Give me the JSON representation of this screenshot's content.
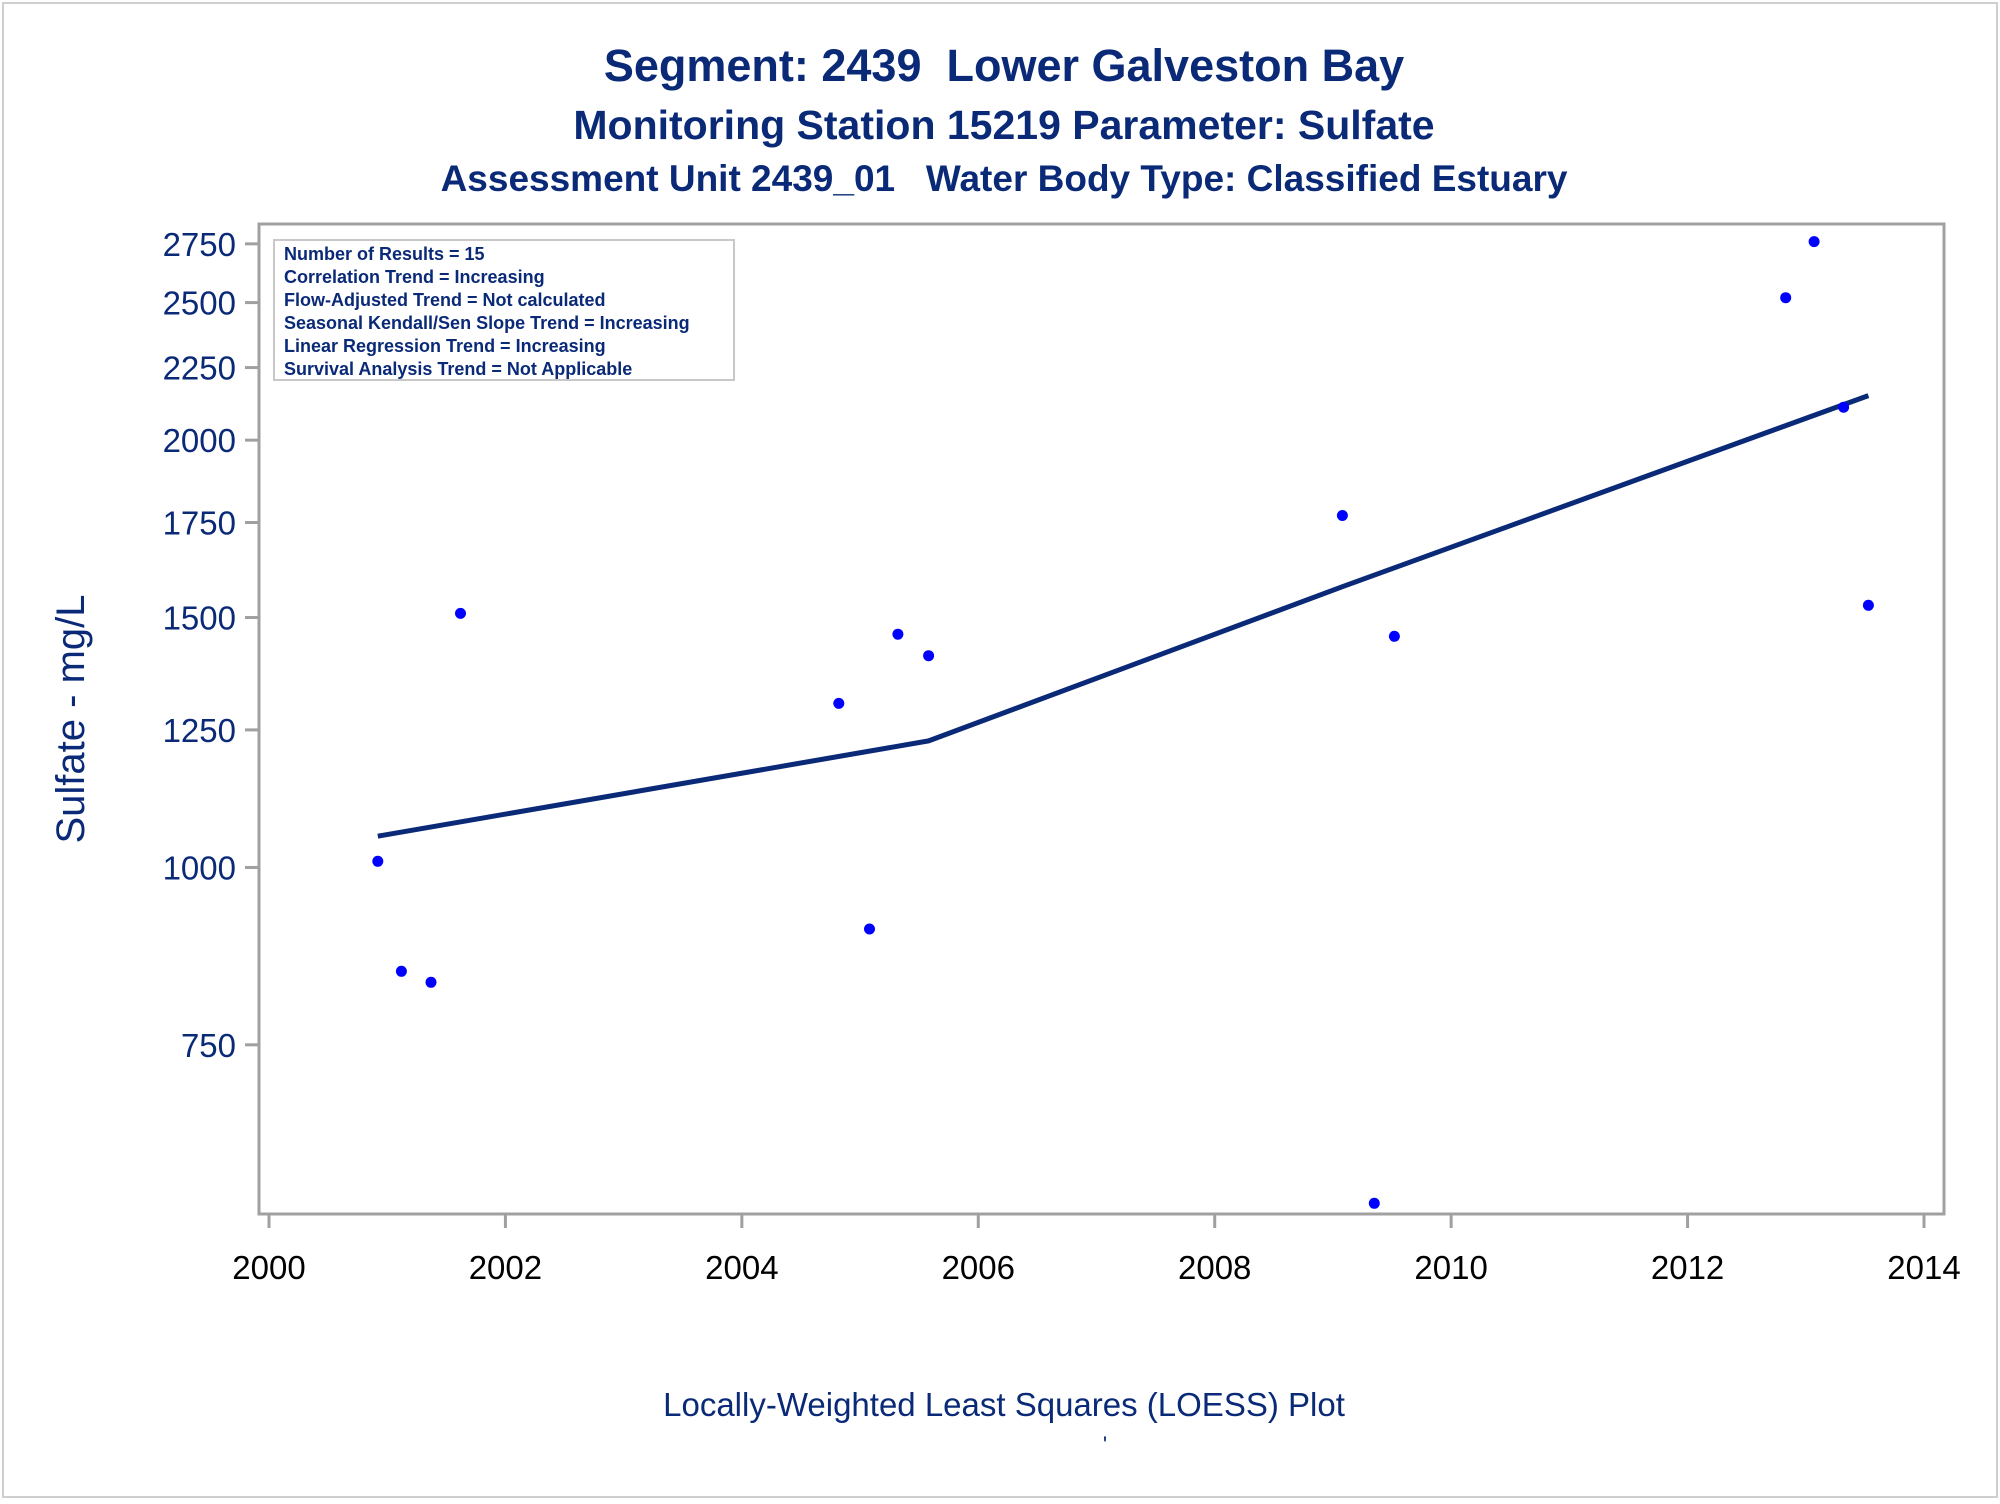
{
  "header": {
    "title": "Segment: 2439  Lower Galveston Bay",
    "subtitle": "Monitoring Station 15219 Parameter: Sulfate",
    "subtitle2": "Assessment Unit 2439_01   Water Body Type: Classified Estuary"
  },
  "inset": {
    "lines": [
      "Number of Results = 15",
      "Correlation Trend = Increasing",
      "Flow-Adjusted Trend = Not calculated",
      "Seasonal Kendall/Sen Slope Trend = Increasing",
      "Linear Regression Trend = Increasing",
      "Survival Analysis Trend = Not Applicable"
    ]
  },
  "footer": {
    "note": "Locally-Weighted Least Squares (LOESS) Plot",
    "mark": "'"
  },
  "colors": {
    "text": "#0a2a78",
    "points": "#0000ff",
    "line": "#0a2a78",
    "axis": "#a0a0a0"
  },
  "chart_data": {
    "type": "scatter",
    "title": "Segment: 2439  Lower Galveston Bay",
    "xlabel": "",
    "ylabel": "Sulfate - mg/L",
    "y_scale": "log",
    "xlim": [
      2000,
      2014
    ],
    "ylim": [
      570,
      2840
    ],
    "x_ticks": [
      2000,
      2002,
      2004,
      2006,
      2008,
      2010,
      2012,
      2014
    ],
    "y_ticks": [
      750,
      1000,
      1250,
      1500,
      1750,
      2000,
      2250,
      2500,
      2750
    ],
    "grid": false,
    "series": [
      {
        "type": "scatter",
        "points": [
          [
            2000.92,
            1010
          ],
          [
            2001.12,
            845
          ],
          [
            2001.37,
            830
          ],
          [
            2001.62,
            1510
          ],
          [
            2004.82,
            1305
          ],
          [
            2005.08,
            905
          ],
          [
            2005.32,
            1460
          ],
          [
            2005.58,
            1410
          ],
          [
            2009.08,
            1770
          ],
          [
            2009.35,
            580
          ],
          [
            2009.52,
            1455
          ],
          [
            2012.83,
            2520
          ],
          [
            2013.07,
            2760
          ],
          [
            2013.32,
            2110
          ],
          [
            2013.53,
            1530
          ]
        ]
      },
      {
        "type": "line",
        "points": [
          [
            2000.92,
            1052
          ],
          [
            2005.58,
            1228
          ],
          [
            2009.08,
            1577
          ],
          [
            2013.53,
            2150
          ]
        ]
      }
    ]
  }
}
